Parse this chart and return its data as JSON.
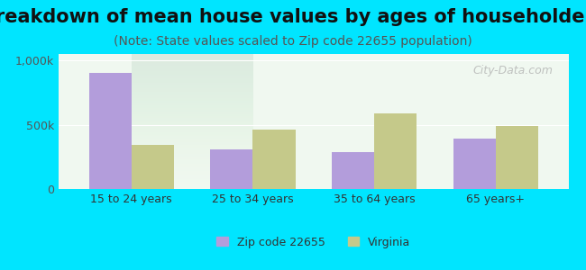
{
  "title": "Breakdown of mean house values by ages of householders",
  "subtitle": "(Note: State values scaled to Zip code 22655 population)",
  "categories": [
    "15 to 24 years",
    "25 to 34 years",
    "35 to 64 years",
    "65 years+"
  ],
  "zip_values": [
    900000,
    310000,
    290000,
    390000
  ],
  "state_values": [
    345000,
    465000,
    590000,
    490000
  ],
  "zip_color": "#b39ddb",
  "state_color": "#c5c98a",
  "background_outer": "#00e5ff",
  "background_inner_top": "#f0f8f0",
  "background_inner_bottom": "#e8f5e8",
  "ylim": [
    0,
    1050000
  ],
  "yticks": [
    0,
    500000,
    1000000
  ],
  "ytick_labels": [
    "0",
    "500k",
    "1,000k"
  ],
  "title_fontsize": 15,
  "subtitle_fontsize": 10,
  "legend_labels": [
    "Zip code 22655",
    "Virginia"
  ],
  "watermark": "City-Data.com"
}
